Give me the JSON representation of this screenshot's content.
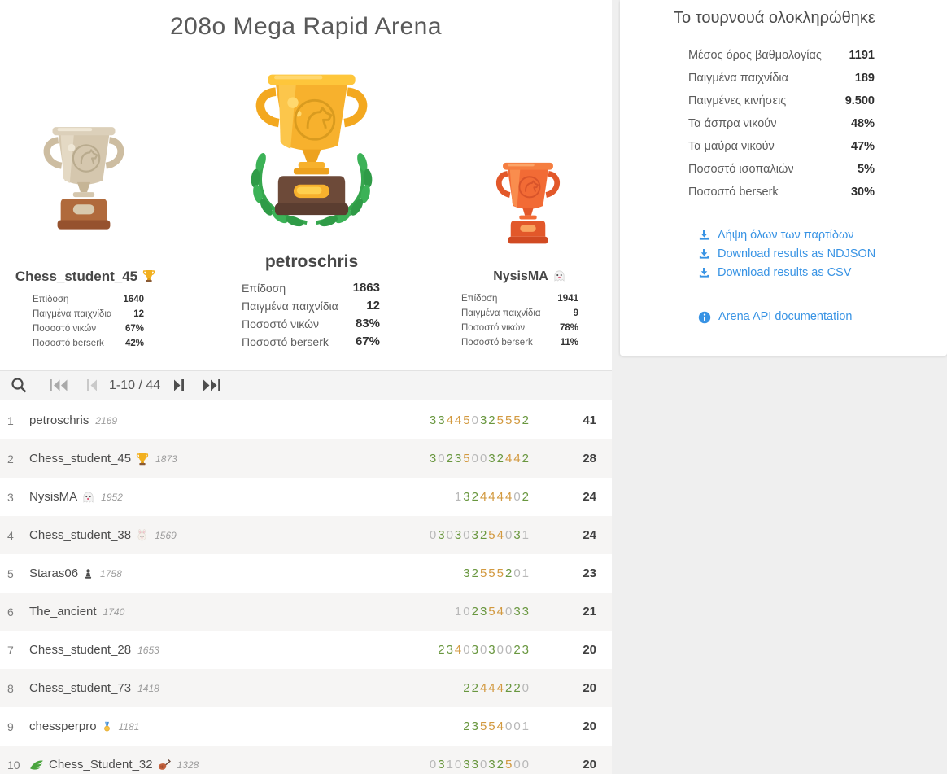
{
  "header": {
    "title": "208o Mega Rapid Arena"
  },
  "podium": {
    "first": {
      "name": "petroschris",
      "trophy_icon": "gold-trophy-with-laurel",
      "stats": [
        {
          "label": "Επίδοση",
          "value": "1863"
        },
        {
          "label": "Παιγμένα παιχνίδια",
          "value": "12"
        },
        {
          "label": "Ποσοστό νικών",
          "value": "83%"
        },
        {
          "label": "Ποσοστό berserk",
          "value": "67%"
        }
      ]
    },
    "second": {
      "name": "Chess_student_45",
      "flair": "trophy",
      "trophy_icon": "silver-trophy",
      "stats": [
        {
          "label": "Επίδοση",
          "value": "1640"
        },
        {
          "label": "Παιγμένα παιχνίδια",
          "value": "12"
        },
        {
          "label": "Ποσοστό νικών",
          "value": "67%"
        },
        {
          "label": "Ποσοστό berserk",
          "value": "42%"
        }
      ]
    },
    "third": {
      "name": "NysisMA",
      "flair": "ghost",
      "trophy_icon": "bronze-trophy",
      "stats": [
        {
          "label": "Επίδοση",
          "value": "1941"
        },
        {
          "label": "Παιγμένα παιχνίδια",
          "value": "9"
        },
        {
          "label": "Ποσοστό νικών",
          "value": "78%"
        },
        {
          "label": "Ποσοστό berserk",
          "value": "11%"
        }
      ]
    }
  },
  "summary": {
    "title": "Το τουρνουά ολοκληρώθηκε",
    "stats": [
      {
        "label": "Μέσος όρος βαθμολογίας",
        "value": "1191"
      },
      {
        "label": "Παιγμένα παιχνίδια",
        "value": "189"
      },
      {
        "label": "Παιγμένες κινήσεις",
        "value": "9.500"
      },
      {
        "label": "Τα άσπρα νικούν",
        "value": "48%"
      },
      {
        "label": "Τα μαύρα νικούν",
        "value": "47%"
      },
      {
        "label": "Ποσοστό ισοπαλιών",
        "value": "5%"
      },
      {
        "label": "Ποσοστό berserk",
        "value": "30%"
      }
    ],
    "links": [
      {
        "icon": "download-icon",
        "label": "Λήψη όλων των παρτίδων"
      },
      {
        "icon": "download-icon",
        "label": "Download results as NDJSON"
      },
      {
        "icon": "download-icon",
        "label": "Download results as CSV"
      }
    ],
    "api_link": {
      "icon": "info-icon",
      "label": "Arena API documentation"
    }
  },
  "controls": {
    "range": "1-10 / 44",
    "icons": [
      "search",
      "first-page",
      "previous-page",
      "next-page",
      "last-page"
    ]
  },
  "standings": {
    "rows": [
      {
        "rank": "1",
        "name": "petroschris",
        "rating": "2169",
        "scores": "334450325552",
        "total": "41"
      },
      {
        "rank": "2",
        "name": "Chess_student_45",
        "flair": "trophy",
        "rating": "1873",
        "scores": "302350032442",
        "total": "28"
      },
      {
        "rank": "3",
        "name": "NysisMA",
        "flair": "ghost",
        "rating": "1952",
        "scores": "132444402",
        "total": "24"
      },
      {
        "rank": "4",
        "name": "Chess_student_38",
        "flair": "rabbit",
        "rating": "1569",
        "scores": "030303254031",
        "total": "24"
      },
      {
        "rank": "5",
        "name": "Staras06",
        "flair": "pawn",
        "rating": "1758",
        "scores": "32555201",
        "total": "23"
      },
      {
        "rank": "6",
        "name": "The_ancient",
        "rating": "1740",
        "scores": "102354033",
        "total": "21"
      },
      {
        "rank": "7",
        "name": "Chess_student_28",
        "rating": "1653",
        "scores": "23403030023",
        "total": "20"
      },
      {
        "rank": "8",
        "name": "Chess_student_73",
        "rating": "1418",
        "scores": "22444220",
        "total": "20"
      },
      {
        "rank": "9",
        "name": "chessperpro",
        "flair": "medal",
        "rating": "1181",
        "scores": "23554001",
        "total": "20"
      },
      {
        "rank": "10",
        "name": "Chess_Student_32",
        "prefix": "wing",
        "flair": "violin",
        "rating": "1328",
        "scores": "031033032500",
        "total": "20"
      }
    ]
  },
  "score_colors": {
    "win": "#69973f",
    "double": "#d2993f",
    "blank": "#b8b8b8"
  },
  "accent_colors": {
    "link_blue": "#3893e4",
    "gold": "#f7b12d",
    "silver": "#d5c7ae",
    "bronze": "#f26b35"
  }
}
